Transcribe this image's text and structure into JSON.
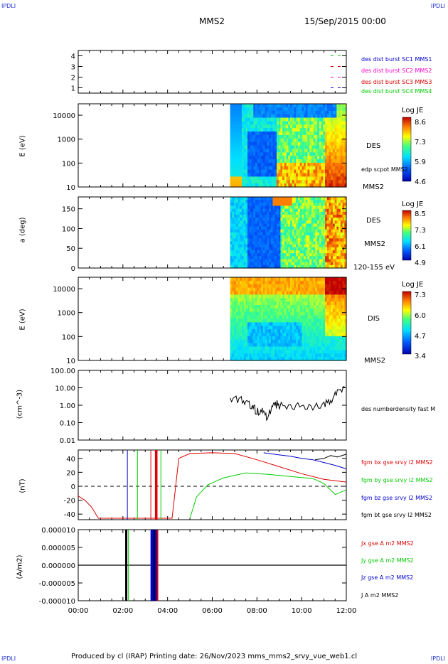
{
  "corner": {
    "tl": "IPDLI",
    "tr": "IPDLI",
    "bl": "IPDLI",
    "br": "IPDLI"
  },
  "header": {
    "spacecraft": "MMS2",
    "datetime": "15/Sep/2015 00:00"
  },
  "footer": {
    "text": "Produced by cl (IRAP)   Printing date: 26/Nov/2023   mms_mms2_srvy_vue_web1.cl"
  },
  "chart_data": [
    {
      "type": "line",
      "panel": "burst-availability",
      "ylim": [
        0.5,
        4.5
      ],
      "yticks": [
        "1",
        "2",
        "3",
        "4"
      ],
      "series": [
        {
          "name": "des dist burst SC1 MMS1",
          "color": "#0000cc",
          "level": 1
        },
        {
          "name": "des dist burst SC2 MMS2",
          "color": "#ff00cc",
          "level": 2
        },
        {
          "name": "des dist burst SC3 MMS3",
          "color": "#dd0000",
          "level": 3
        },
        {
          "name": "des dist burst SC4 MMS4",
          "color": "#00cc00",
          "level": 4
        }
      ]
    },
    {
      "type": "heatmap",
      "panel": "des-energy",
      "ylabel": "E (eV)",
      "yscale": "log",
      "yticks": [
        "10000",
        "1000",
        "100",
        "10"
      ],
      "ylim": [
        10,
        30000
      ],
      "side_label": "DES",
      "side_note": "edp scpot MMS2",
      "bottom_label": "MMS2",
      "colorbar": {
        "title": "Log JE",
        "ticks": [
          "8.6",
          "7.3",
          "5.9",
          "4.6"
        ]
      },
      "data_start_hour": 6.8
    },
    {
      "type": "heatmap",
      "panel": "des-pitch",
      "ylabel": "a (deg)",
      "yticks": [
        "150",
        "100",
        "50",
        "0"
      ],
      "ylim": [
        0,
        180
      ],
      "side_label": "DES",
      "side_label_2": "MMS2",
      "bottom_label": "120-155 eV",
      "colorbar": {
        "title": "Log JE",
        "ticks": [
          "8.5",
          "7.3",
          "6.1",
          "4.9"
        ]
      },
      "data_start_hour": 6.8
    },
    {
      "type": "heatmap",
      "panel": "dis-energy",
      "ylabel": "E (eV)",
      "yscale": "log",
      "yticks": [
        "10000",
        "1000",
        "100",
        "10"
      ],
      "ylim": [
        10,
        30000
      ],
      "side_label": "DIS",
      "bottom_label": "MMS2",
      "colorbar": {
        "title": "Log JE",
        "ticks": [
          "7.3",
          "6.0",
          "4.7",
          "3.4"
        ]
      },
      "data_start_hour": 6.8
    },
    {
      "type": "line",
      "panel": "density",
      "ylabel": "(cm^-3)",
      "yscale": "log",
      "yticks": [
        "100.00",
        "10.00",
        "1.00",
        "0.10",
        "0.01"
      ],
      "ylim": [
        0.01,
        100
      ],
      "series": [
        {
          "name": "des numberdensity fast M",
          "color": "#000000",
          "x": [
            6.8,
            7.2,
            7.5,
            7.8,
            8.0,
            8.2,
            8.4,
            8.6,
            8.8,
            9.0,
            9.5,
            10.0,
            10.5,
            11.0,
            11.3,
            11.6,
            12.0
          ],
          "y": [
            2.5,
            2.0,
            1.5,
            1.0,
            0.4,
            0.6,
            0.2,
            0.5,
            1.2,
            1.0,
            0.9,
            0.8,
            0.7,
            1.0,
            2.0,
            5.0,
            12.0
          ]
        }
      ]
    },
    {
      "type": "line",
      "panel": "magnetic-field",
      "ylabel": "(nT)",
      "yticks": [
        "40",
        "20",
        "0",
        "-20",
        "-40"
      ],
      "ylim": [
        -48,
        52
      ],
      "series": [
        {
          "name": "fgm bx gse srvy l2 MMS2",
          "color": "#dd0000",
          "x": [
            0.0,
            0.3,
            0.6,
            0.9,
            4.2,
            4.5,
            5.0,
            6.0,
            7.0,
            8.0,
            9.0,
            10.0,
            11.0,
            12.0
          ],
          "y": [
            -14,
            -20,
            -30,
            -46,
            -46,
            40,
            47,
            48,
            47,
            38,
            28,
            18,
            10,
            6
          ]
        },
        {
          "name": "fgm by gse srvy l2 MMS2",
          "color": "#00cc00",
          "x": [
            5.0,
            5.3,
            5.8,
            6.5,
            7.5,
            8.5,
            9.5,
            10.5,
            11.0,
            11.5,
            12.0
          ],
          "y": [
            -46,
            -15,
            2,
            12,
            19,
            17,
            14,
            11,
            4,
            -12,
            -5
          ]
        },
        {
          "name": "fgm bz gse srvy l2 MMS2",
          "color": "#0000cc",
          "x": [
            8.3,
            9.0,
            9.5,
            10.0,
            10.5,
            11.0,
            11.5,
            12.0
          ],
          "y": [
            48,
            45,
            43,
            40,
            38,
            34,
            30,
            25
          ]
        },
        {
          "name": "fgm bt gse srvy l2 MMS2",
          "color": "#000000",
          "x": [
            10.6,
            11.0,
            11.3,
            11.6,
            12.0
          ],
          "y": [
            38,
            40,
            44,
            42,
            46
          ]
        }
      ]
    },
    {
      "type": "line",
      "panel": "current-density",
      "ylabel": "(A/m2)",
      "yticks": [
        "0.000010",
        "0.000005",
        "0.000000",
        "-0.000005",
        "-0.000010"
      ],
      "ylim": [
        -1e-05,
        1e-05
      ],
      "series": [
        {
          "name": "Jx gse A m2 MMS2",
          "color": "#dd0000"
        },
        {
          "name": "Jy gse A m2 MMS2",
          "color": "#00cc00"
        },
        {
          "name": "Jz gse A m2 MMS2",
          "color": "#0000cc"
        },
        {
          "name": "J A m2 MMS2",
          "color": "#000000"
        }
      ]
    }
  ],
  "xaxis": {
    "ticks": [
      "00:00",
      "02:00",
      "04:00",
      "06:00",
      "08:00",
      "10:00",
      "12:00"
    ],
    "range_hours": [
      0,
      12
    ]
  }
}
